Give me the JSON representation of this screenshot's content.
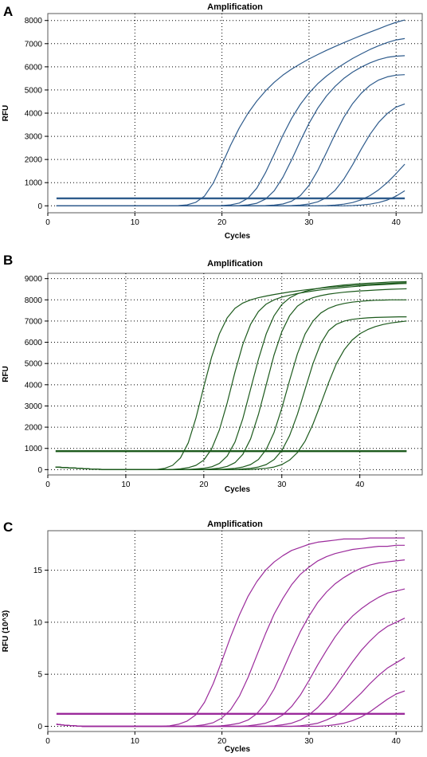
{
  "chart_data": [
    {
      "panel": "A",
      "type": "line",
      "title": "Amplification",
      "xlabel": "Cycles",
      "ylabel": "RFU",
      "xlim": [
        0,
        43
      ],
      "ylim": [
        -300,
        8300
      ],
      "xticks": [
        0,
        10,
        20,
        30,
        40
      ],
      "yticks": [
        0,
        1000,
        2000,
        3000,
        4000,
        5000,
        6000,
        7000,
        8000
      ],
      "grid": true,
      "color": "#2e5b8c",
      "threshold": 320,
      "x": [
        1,
        2,
        3,
        4,
        5,
        6,
        7,
        8,
        9,
        10,
        11,
        12,
        13,
        14,
        15,
        16,
        17,
        18,
        19,
        20,
        21,
        22,
        23,
        24,
        25,
        26,
        27,
        28,
        29,
        30,
        31,
        32,
        33,
        34,
        35,
        36,
        37,
        38,
        39,
        40,
        41
      ],
      "series": [
        {
          "values": [
            0,
            0,
            0,
            0,
            0,
            0,
            0,
            0,
            0,
            0,
            0,
            0,
            0,
            0,
            10,
            40,
            150,
            420,
            980,
            1780,
            2620,
            3370,
            4000,
            4520,
            4960,
            5330,
            5640,
            5900,
            6130,
            6340,
            6530,
            6710,
            6880,
            7040,
            7200,
            7350,
            7500,
            7640,
            7790,
            7920,
            8020
          ]
        },
        {
          "values": [
            0,
            0,
            0,
            0,
            0,
            0,
            0,
            0,
            0,
            0,
            0,
            0,
            0,
            0,
            0,
            0,
            0,
            0,
            0,
            10,
            40,
            120,
            330,
            760,
            1430,
            2230,
            3040,
            3770,
            4380,
            4870,
            5270,
            5600,
            5880,
            6130,
            6360,
            6560,
            6750,
            6910,
            7050,
            7160,
            7220
          ]
        },
        {
          "values": [
            0,
            0,
            0,
            0,
            0,
            0,
            0,
            0,
            0,
            0,
            0,
            0,
            0,
            0,
            0,
            0,
            0,
            0,
            0,
            0,
            0,
            10,
            40,
            110,
            290,
            650,
            1230,
            1980,
            2800,
            3560,
            4210,
            4740,
            5160,
            5500,
            5770,
            5990,
            6170,
            6310,
            6410,
            6460,
            6480
          ]
        },
        {
          "values": [
            0,
            0,
            0,
            0,
            0,
            0,
            0,
            0,
            0,
            0,
            0,
            0,
            0,
            0,
            0,
            0,
            0,
            0,
            0,
            0,
            0,
            0,
            0,
            0,
            10,
            30,
            80,
            200,
            440,
            880,
            1520,
            2300,
            3100,
            3820,
            4410,
            4860,
            5200,
            5430,
            5570,
            5640,
            5660
          ]
        },
        {
          "values": [
            0,
            0,
            0,
            0,
            0,
            0,
            0,
            0,
            0,
            0,
            0,
            0,
            0,
            0,
            0,
            0,
            0,
            0,
            0,
            0,
            0,
            0,
            0,
            0,
            0,
            0,
            0,
            10,
            30,
            80,
            170,
            350,
            670,
            1150,
            1770,
            2450,
            3080,
            3600,
            3990,
            4260,
            4400
          ]
        },
        {
          "values": [
            0,
            0,
            0,
            0,
            0,
            0,
            0,
            0,
            0,
            0,
            0,
            0,
            0,
            0,
            0,
            0,
            0,
            0,
            0,
            0,
            0,
            0,
            0,
            0,
            0,
            0,
            0,
            0,
            0,
            0,
            0,
            10,
            30,
            70,
            140,
            260,
            440,
            690,
            1010,
            1390,
            1800
          ]
        },
        {
          "values": [
            0,
            0,
            0,
            0,
            0,
            0,
            0,
            0,
            0,
            0,
            0,
            0,
            0,
            0,
            0,
            0,
            0,
            0,
            0,
            0,
            0,
            0,
            0,
            0,
            0,
            0,
            0,
            0,
            0,
            0,
            0,
            0,
            0,
            0,
            10,
            30,
            70,
            140,
            250,
            420,
            650
          ]
        }
      ]
    },
    {
      "panel": "B",
      "type": "line",
      "title": "Amplification",
      "xlabel": "Cycles",
      "ylabel": "RFU",
      "xlim": [
        0,
        48
      ],
      "ylim": [
        -250,
        9250
      ],
      "xticks": [
        0,
        10,
        20,
        30,
        40
      ],
      "yticks": [
        0,
        1000,
        2000,
        3000,
        4000,
        5000,
        6000,
        7000,
        8000,
        9000
      ],
      "grid": true,
      "color": "#1c5a1c",
      "threshold": 870,
      "x": [
        1,
        2,
        3,
        4,
        5,
        6,
        7,
        8,
        9,
        10,
        11,
        12,
        13,
        14,
        15,
        16,
        17,
        18,
        19,
        20,
        21,
        22,
        23,
        24,
        25,
        26,
        27,
        28,
        29,
        30,
        31,
        32,
        33,
        34,
        35,
        36,
        37,
        38,
        39,
        40,
        41,
        42,
        43,
        44,
        45,
        46
      ],
      "series": [
        {
          "values": [
            120,
            100,
            80,
            60,
            40,
            20,
            10,
            0,
            0,
            0,
            0,
            0,
            0,
            10,
            60,
            200,
            550,
            1260,
            2440,
            3900,
            5300,
            6400,
            7150,
            7600,
            7850,
            8000,
            8100,
            8180,
            8250,
            8310,
            8370,
            8420,
            8470,
            8510,
            8550,
            8590,
            8620,
            8650,
            8680,
            8700,
            8720,
            8740,
            8760,
            8780,
            8800,
            8810
          ]
        },
        {
          "values": [
            120,
            100,
            80,
            60,
            40,
            20,
            10,
            0,
            0,
            0,
            0,
            0,
            0,
            0,
            0,
            10,
            40,
            90,
            200,
            450,
            970,
            1870,
            3150,
            4600,
            5900,
            6850,
            7450,
            7800,
            8000,
            8130,
            8220,
            8300,
            8360,
            8420,
            8470,
            8510,
            8550,
            8590,
            8620,
            8650,
            8680,
            8700,
            8720,
            8740,
            8760,
            8770
          ]
        },
        {
          "values": [
            120,
            100,
            80,
            60,
            40,
            20,
            10,
            0,
            0,
            0,
            0,
            0,
            0,
            0,
            0,
            0,
            0,
            10,
            30,
            60,
            130,
            290,
            640,
            1300,
            2400,
            3800,
            5200,
            6400,
            7250,
            7780,
            8090,
            8280,
            8400,
            8490,
            8560,
            8620,
            8660,
            8700,
            8730,
            8760,
            8780,
            8800,
            8820,
            8840,
            8850,
            8860
          ]
        },
        {
          "values": [
            120,
            100,
            80,
            60,
            40,
            20,
            10,
            0,
            0,
            0,
            0,
            0,
            0,
            0,
            0,
            0,
            0,
            0,
            0,
            10,
            30,
            70,
            150,
            330,
            720,
            1450,
            2600,
            4000,
            5400,
            6500,
            7250,
            7700,
            7950,
            8100,
            8200,
            8270,
            8320,
            8360,
            8390,
            8420,
            8440,
            8460,
            8480,
            8500,
            8510,
            8520
          ]
        },
        {
          "values": [
            120,
            100,
            80,
            60,
            40,
            20,
            10,
            0,
            0,
            0,
            0,
            0,
            0,
            0,
            0,
            0,
            0,
            0,
            0,
            0,
            0,
            10,
            30,
            60,
            120,
            240,
            480,
            950,
            1750,
            2900,
            4200,
            5450,
            6400,
            7000,
            7380,
            7600,
            7740,
            7830,
            7890,
            7930,
            7960,
            7980,
            7990,
            8000,
            8000,
            8000
          ]
        },
        {
          "values": [
            120,
            100,
            80,
            60,
            40,
            20,
            10,
            0,
            0,
            0,
            0,
            0,
            0,
            0,
            0,
            0,
            0,
            0,
            0,
            0,
            0,
            0,
            0,
            10,
            30,
            60,
            120,
            240,
            470,
            900,
            1600,
            2600,
            3800,
            5000,
            5950,
            6550,
            6850,
            7000,
            7080,
            7120,
            7150,
            7170,
            7180,
            7190,
            7200,
            7200
          ]
        },
        {
          "values": [
            120,
            100,
            80,
            60,
            40,
            20,
            10,
            0,
            0,
            0,
            0,
            0,
            0,
            0,
            0,
            0,
            0,
            0,
            0,
            0,
            0,
            0,
            0,
            0,
            0,
            10,
            30,
            60,
            120,
            240,
            450,
            800,
            1350,
            2150,
            3100,
            4100,
            5000,
            5650,
            6100,
            6400,
            6600,
            6740,
            6840,
            6910,
            6960,
            7000
          ]
        }
      ]
    },
    {
      "panel": "C",
      "type": "line",
      "title": "Amplification",
      "xlabel": "Cycles",
      "ylabel": "RFU (10^3)",
      "xlim": [
        0,
        43
      ],
      "ylim": [
        -0.5,
        18.8
      ],
      "xticks": [
        0,
        10,
        20,
        30,
        40
      ],
      "yticks": [
        0,
        5,
        10,
        15
      ],
      "grid": true,
      "color": "#9b2a9b",
      "threshold": 1.2,
      "x": [
        1,
        2,
        3,
        4,
        5,
        6,
        7,
        8,
        9,
        10,
        11,
        12,
        13,
        14,
        15,
        16,
        17,
        18,
        19,
        20,
        21,
        22,
        23,
        24,
        25,
        26,
        27,
        28,
        29,
        30,
        31,
        32,
        33,
        34,
        35,
        36,
        37,
        38,
        39,
        40,
        41
      ],
      "series": [
        {
          "values": [
            0.2,
            0.1,
            0.05,
            0,
            0,
            0,
            0,
            0,
            0,
            0,
            0,
            0,
            0,
            0.05,
            0.2,
            0.5,
            1.1,
            2.3,
            4.1,
            6.3,
            8.6,
            10.7,
            12.5,
            13.9,
            15.0,
            15.8,
            16.4,
            16.9,
            17.2,
            17.5,
            17.7,
            17.8,
            17.9,
            18.0,
            18.0,
            18.0,
            18.1,
            18.1,
            18.1,
            18.1,
            18.1
          ]
        },
        {
          "values": [
            0.2,
            0.1,
            0.05,
            0,
            0,
            0,
            0,
            0,
            0,
            0,
            0,
            0,
            0,
            0,
            0,
            0,
            0.05,
            0.15,
            0.35,
            0.8,
            1.6,
            2.9,
            4.7,
            6.8,
            8.9,
            10.8,
            12.3,
            13.6,
            14.6,
            15.3,
            15.9,
            16.3,
            16.6,
            16.8,
            17.0,
            17.1,
            17.2,
            17.3,
            17.3,
            17.4,
            17.4
          ]
        },
        {
          "values": [
            0.2,
            0.1,
            0.05,
            0,
            0,
            0,
            0,
            0,
            0,
            0,
            0,
            0,
            0,
            0,
            0,
            0,
            0,
            0,
            0,
            0.05,
            0.15,
            0.3,
            0.6,
            1.2,
            2.2,
            3.6,
            5.4,
            7.3,
            9.1,
            10.6,
            11.9,
            12.9,
            13.7,
            14.3,
            14.8,
            15.2,
            15.5,
            15.7,
            15.8,
            15.9,
            16.0
          ]
        },
        {
          "values": [
            0.2,
            0.1,
            0.05,
            0,
            0,
            0,
            0,
            0,
            0,
            0,
            0,
            0,
            0,
            0,
            0,
            0,
            0,
            0,
            0,
            0,
            0,
            0,
            0.05,
            0.15,
            0.3,
            0.6,
            1.1,
            1.9,
            3.0,
            4.4,
            5.9,
            7.3,
            8.6,
            9.7,
            10.6,
            11.3,
            11.9,
            12.4,
            12.8,
            13.0,
            13.2
          ]
        },
        {
          "values": [
            0.2,
            0.1,
            0.05,
            0,
            0,
            0,
            0,
            0,
            0,
            0,
            0,
            0,
            0,
            0,
            0,
            0,
            0,
            0,
            0,
            0,
            0,
            0,
            0,
            0,
            0,
            0.05,
            0.15,
            0.3,
            0.6,
            1.1,
            1.8,
            2.7,
            3.8,
            5.0,
            6.2,
            7.3,
            8.2,
            9.0,
            9.6,
            10.0,
            10.4
          ]
        },
        {
          "values": [
            0.2,
            0.1,
            0.05,
            0,
            0,
            0,
            0,
            0,
            0,
            0,
            0,
            0,
            0,
            0,
            0,
            0,
            0,
            0,
            0,
            0,
            0,
            0,
            0,
            0,
            0,
            0,
            0,
            0,
            0.05,
            0.15,
            0.3,
            0.6,
            1.0,
            1.6,
            2.4,
            3.2,
            4.1,
            4.9,
            5.6,
            6.1,
            6.6
          ]
        },
        {
          "values": [
            0.2,
            0.1,
            0.05,
            0,
            0,
            0,
            0,
            0,
            0,
            0,
            0,
            0,
            0,
            0,
            0,
            0,
            0,
            0,
            0,
            0,
            0,
            0,
            0,
            0,
            0,
            0,
            0,
            0,
            0,
            0,
            0,
            0.05,
            0.15,
            0.3,
            0.55,
            0.9,
            1.4,
            2.0,
            2.6,
            3.1,
            3.4
          ]
        }
      ]
    }
  ]
}
